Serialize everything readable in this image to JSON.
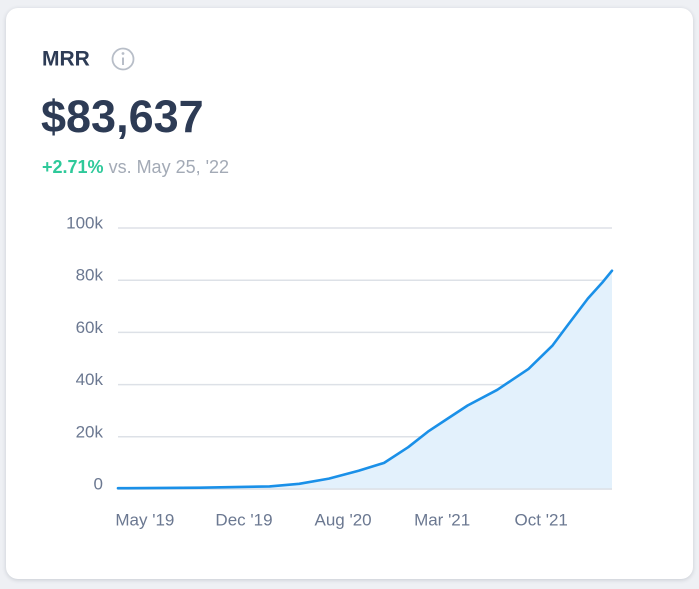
{
  "chart_data": {
    "type": "line",
    "title": "MRR",
    "headline": "$83,637",
    "change": "+2.71%",
    "comparison": "vs. May 25, '22",
    "x": [
      -1.9,
      3.9,
      8.8,
      10.9,
      13,
      15.1,
      16.9,
      18.6,
      20,
      21.4,
      22.8,
      24.9,
      27.1,
      28.8,
      29.9,
      31.3,
      32.3,
      33
    ],
    "series": [
      {
        "color": "#1a90e8",
        "values": [
          0.3,
          0.5,
          1,
          2,
          4,
          7,
          10,
          16,
          22,
          27,
          32,
          38,
          46,
          55,
          63,
          73,
          79,
          83.637
        ]
      }
    ],
    "xlim": [
      -1.9,
      33
    ],
    "xticks": [
      {
        "value": 0,
        "label": "May '19"
      },
      {
        "value": 7,
        "label": "Dec '19"
      },
      {
        "value": 14,
        "label": "Aug '20"
      },
      {
        "value": 21,
        "label": "Mar '21"
      },
      {
        "value": 28,
        "label": "Oct '21"
      }
    ],
    "ylim": [
      0,
      100
    ],
    "yticks": [
      0,
      {
        "value": 20,
        "label": "20k"
      },
      {
        "value": 40,
        "label": "40k"
      },
      {
        "value": 60,
        "label": "60k"
      },
      {
        "value": 80,
        "label": "80k"
      },
      {
        "value": 100,
        "label": "100k"
      }
    ],
    "grid": true,
    "area_color": "#e3f1fc",
    "change_color": "#2ec99a"
  }
}
